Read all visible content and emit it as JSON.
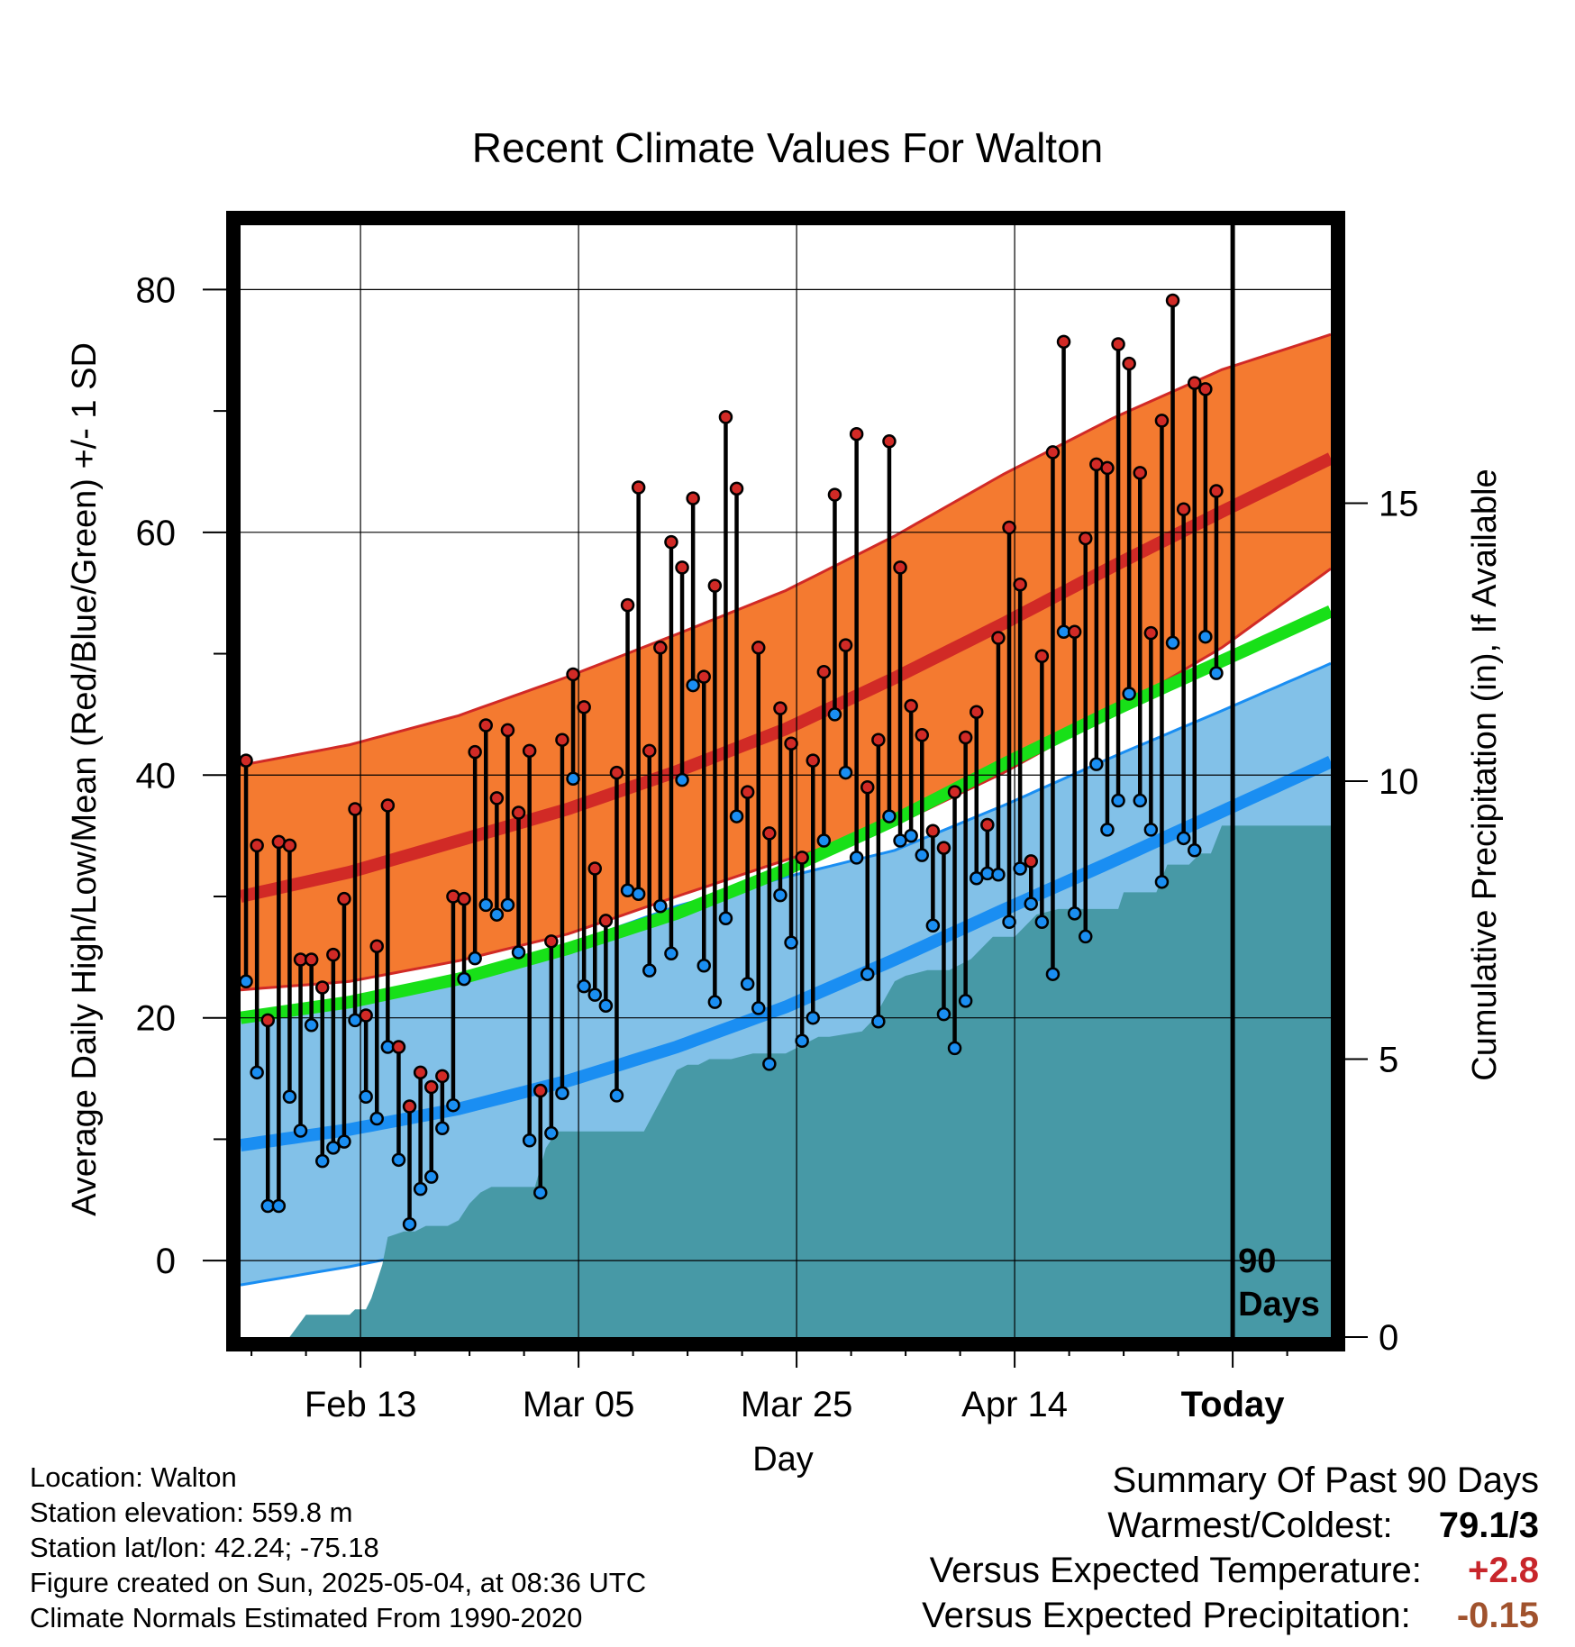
{
  "chart_data": {
    "type": "line",
    "title": "Recent Climate Values For Walton",
    "xlabel": "Day",
    "ylabel_left": "Average Daily High/Low/Mean (Red/Blue/Green) +/- 1 SD",
    "ylabel_right": "Cumulative Precipitation (in), If Available",
    "x_tick_labels": [
      "Feb 13",
      "Mar 05",
      "Mar 25",
      "Apr 14",
      "Today"
    ],
    "x_tick_day_index": [
      11,
      31,
      51,
      71,
      91
    ],
    "x_range_days": [
      0,
      100
    ],
    "y_left_range": [
      -6.3,
      85.3
    ],
    "y_left_ticks": [
      0,
      20,
      40,
      60,
      80
    ],
    "y_right_range": [
      0,
      20
    ],
    "y_right_ticks": [
      0,
      5,
      10,
      15
    ],
    "today_marker_label": "90 Days",
    "grid": true,
    "colors": {
      "high_band": "#f47a30",
      "high_mean": "#d12a26",
      "low_band": "#82c1e8",
      "low_mean": "#1a8ef2",
      "mean_normal": "#18e018",
      "precip": "#4799a6",
      "high_point": "#d12a26",
      "low_point": "#1a8ef2"
    },
    "normal_high_mean": {
      "x": [
        0,
        10,
        20,
        30,
        40,
        50,
        60,
        70,
        80,
        90,
        100
      ],
      "y": [
        30,
        32,
        34.6,
        37.2,
        40.3,
        43.8,
        48,
        52.5,
        57.2,
        61.7,
        66.1
      ]
    },
    "normal_high_plus_sd": {
      "x": [
        0,
        10,
        20,
        30,
        40,
        50,
        60,
        70,
        80,
        90,
        100
      ],
      "y": [
        40.8,
        42.5,
        44.9,
        48.1,
        51.6,
        55.2,
        59.7,
        64.8,
        69.4,
        73.4,
        76.3
      ]
    },
    "normal_high_minus_sd": {
      "x": [
        0,
        10,
        20,
        30,
        40,
        50,
        60,
        70,
        80,
        90,
        100
      ],
      "y": [
        22.3,
        23,
        24.7,
        26.9,
        30,
        33,
        35.9,
        40.2,
        45.2,
        50.5,
        57
      ]
    },
    "normal_mean": {
      "x": [
        0,
        10,
        20,
        30,
        40,
        50,
        60,
        70,
        80,
        90,
        100
      ],
      "y": [
        20,
        21.3,
        23.2,
        25.7,
        28.6,
        32.2,
        36.3,
        40.9,
        45.3,
        49.4,
        53.5
      ]
    },
    "normal_low_mean": {
      "x": [
        0,
        10,
        20,
        30,
        40,
        50,
        60,
        70,
        80,
        90,
        100
      ],
      "y": [
        9.5,
        10.8,
        12.5,
        14.8,
        17.6,
        20.9,
        24.8,
        28.9,
        32.9,
        37,
        41.1
      ]
    },
    "normal_low_plus_sd": {
      "x": [
        0,
        10,
        20,
        30,
        40,
        50,
        60,
        70,
        80,
        90,
        100
      ],
      "y": [
        20.2,
        21.5,
        23.4,
        26,
        29.2,
        31.6,
        33.8,
        37.5,
        41.5,
        45.3,
        49.2
      ]
    },
    "normal_low_minus_sd": {
      "x": [
        0,
        10,
        20,
        30,
        40,
        50,
        60,
        70,
        80,
        90,
        100
      ],
      "y": [
        -2,
        -0.5,
        1.3,
        3.5,
        6.7,
        11,
        16,
        21,
        25.7,
        30.2,
        34
      ]
    },
    "daily_high": [
      41.2,
      34.2,
      19.8,
      34.5,
      34.2,
      24.8,
      24.8,
      22.5,
      25.2,
      29.8,
      37.2,
      20.2,
      25.9,
      37.5,
      17.6,
      12.7,
      15.5,
      14.3,
      15.2,
      30,
      29.8,
      41.9,
      44.1,
      38.1,
      43.7,
      36.9,
      42,
      14,
      26.3,
      42.9,
      48.3,
      45.6,
      32.3,
      28,
      40.2,
      54,
      63.7,
      42,
      50.5,
      59.2,
      57.1,
      62.8,
      48.1,
      55.6,
      69.5,
      63.6,
      38.6,
      50.5,
      35.2,
      45.5,
      42.6,
      33.2,
      41.2,
      48.5,
      63.1,
      50.7,
      68.1,
      39,
      42.9,
      67.5,
      57.1,
      45.7,
      43.3,
      35.4,
      34,
      38.6,
      43.1,
      45.2,
      35.9,
      51.3,
      60.4,
      55.7,
      32.9,
      49.8,
      66.6,
      75.7,
      51.8,
      59.5,
      65.6,
      65.3,
      75.5,
      73.9,
      64.9,
      51.7,
      69.2,
      79.1,
      61.9,
      72.3,
      71.8,
      63.4
    ],
    "daily_low": [
      23,
      15.5,
      4.5,
      4.5,
      13.5,
      10.7,
      19.4,
      8.2,
      9.3,
      9.8,
      19.8,
      13.5,
      11.7,
      17.6,
      8.3,
      3,
      5.9,
      6.9,
      10.9,
      12.8,
      23.2,
      24.9,
      29.3,
      28.5,
      29.3,
      25.4,
      9.9,
      5.6,
      10.5,
      13.8,
      39.7,
      22.6,
      21.9,
      21,
      13.6,
      30.5,
      30.2,
      23.9,
      29.2,
      25.3,
      39.6,
      47.4,
      24.3,
      21.3,
      28.2,
      36.6,
      22.8,
      20.8,
      16.2,
      30.1,
      26.2,
      18.1,
      20,
      34.6,
      45,
      40.2,
      33.2,
      23.6,
      19.7,
      36.6,
      34.6,
      35,
      33.4,
      27.6,
      20.3,
      17.5,
      21.4,
      31.5,
      31.9,
      31.8,
      27.9,
      32.3,
      29.4,
      27.9,
      23.6,
      51.8,
      28.6,
      26.7,
      40.9,
      35.5,
      37.9,
      46.7,
      37.9,
      35.5,
      31.2,
      50.9,
      34.8,
      33.8,
      51.4,
      48.4
    ],
    "cumulative_precip": {
      "x": [
        0,
        3,
        4.5,
        6,
        8,
        10,
        10.5,
        11.5,
        12,
        13,
        13.5,
        15,
        16,
        17,
        18,
        19,
        20,
        21,
        22,
        23,
        24,
        25,
        26,
        27,
        28,
        29,
        30,
        31,
        32,
        33,
        35,
        37,
        40,
        41,
        42,
        43,
        45,
        47,
        50,
        53,
        54,
        57,
        58,
        60,
        61,
        63,
        65,
        67,
        69,
        71,
        73,
        75,
        77,
        79,
        80,
        80.5,
        81,
        82,
        83,
        84,
        85,
        86,
        87,
        88,
        89,
        90,
        91,
        100
      ],
      "y": [
        0,
        0,
        0,
        0.4,
        0.4,
        0.4,
        0.5,
        0.5,
        0.7,
        1.3,
        1.8,
        1.9,
        1.9,
        2,
        2,
        2,
        2.1,
        2.4,
        2.6,
        2.7,
        2.7,
        2.7,
        2.7,
        2.7,
        3.4,
        3.7,
        3.7,
        3.7,
        3.7,
        3.7,
        3.7,
        3.7,
        4.8,
        4.9,
        4.9,
        5,
        5,
        5.1,
        5.1,
        5.4,
        5.4,
        5.5,
        5.7,
        6.4,
        6.5,
        6.6,
        6.6,
        6.8,
        7.2,
        7.2,
        7.6,
        7.7,
        7.7,
        7.7,
        7.7,
        7.7,
        8,
        8,
        8,
        8,
        8.5,
        8.5,
        8.5,
        8.7,
        8.7,
        9.2,
        9.2,
        9.2
      ]
    }
  },
  "info": {
    "location": "Location: Walton",
    "elevation": "Station elevation: 559.8 m",
    "latlon": "Station lat/lon: 42.24; -75.18",
    "created": "Figure created on Sun, 2025-05-04, at 08:36 UTC",
    "normals": "Climate Normals Estimated From 1990-2020"
  },
  "summary": {
    "heading": "Summary Of Past 90 Days",
    "warmest_coldest_label": "Warmest/Coldest:",
    "warmest_coldest_value": "79.1/3",
    "temp_label": "Versus Expected Temperature:",
    "temp_value": "+2.8",
    "temp_color": "#c8262b",
    "precip_label": "Versus Expected Precipitation:",
    "precip_value": "-0.15",
    "precip_color": "#a0522d"
  }
}
